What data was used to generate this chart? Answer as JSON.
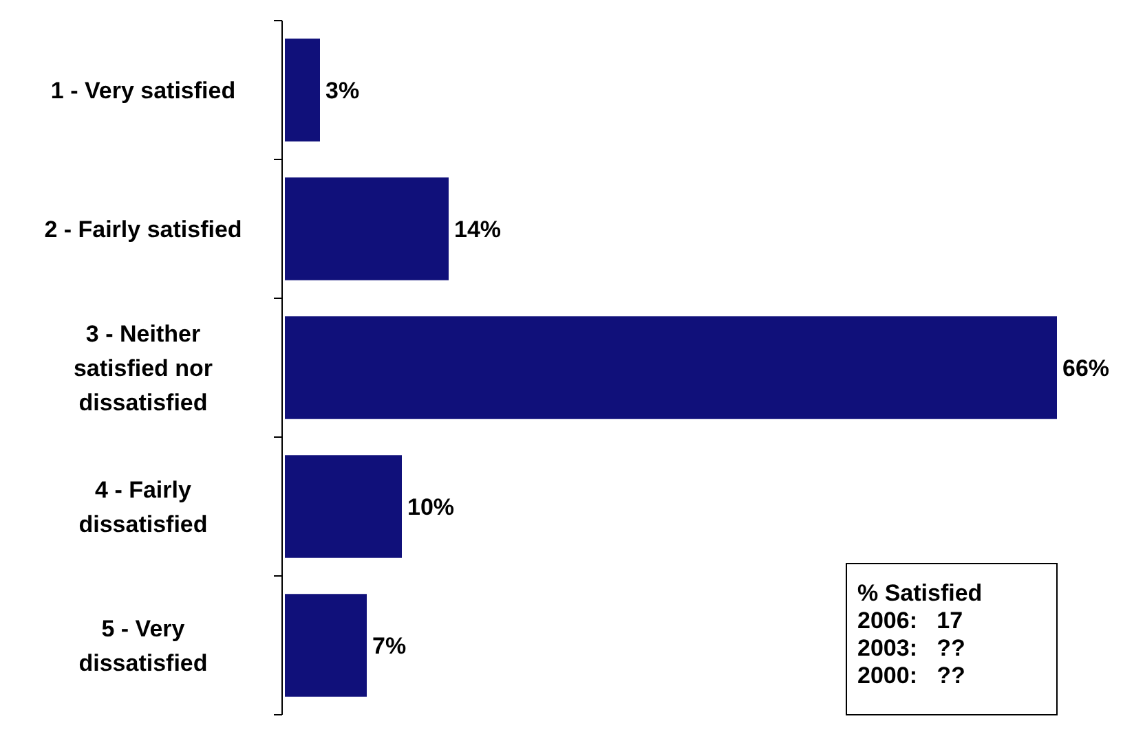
{
  "chart_data": {
    "type": "bar",
    "orientation": "horizontal",
    "categories": [
      "1 - Very satisfied",
      "2 - Fairly satisfied",
      "3 - Neither satisfied nor dissatisfied",
      "4 - Fairly dissatisfied",
      "5 - Very dissatisfied"
    ],
    "values": [
      3,
      14,
      66,
      10,
      7
    ],
    "value_labels": [
      "3%",
      "14%",
      "66%",
      "10%",
      "7%"
    ],
    "color": "#10107a",
    "annotations": [
      "% Satisfied\n2006:   17\n2003:   ??\n2000:   ??"
    ]
  }
}
